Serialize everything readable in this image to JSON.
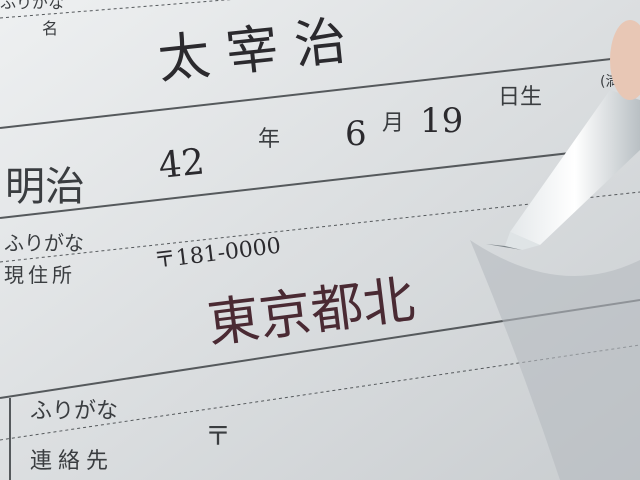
{
  "form": {
    "name_section": {
      "furigana_label": "ふりがな",
      "name_label": "名",
      "name": "太 宰 治"
    },
    "birth": {
      "era": "明治",
      "year": "42",
      "year_label": "年",
      "month": "6",
      "month_label": "月",
      "day": "19",
      "day_label": "日生",
      "age_label": "(満"
    },
    "address": {
      "furigana_label": "ふりがな",
      "postal": "〒181-0000",
      "label": "現住所",
      "value": "東京都北"
    },
    "contact": {
      "furigana_label": "ふりがな",
      "label": "連絡先",
      "postal": "〒"
    }
  }
}
